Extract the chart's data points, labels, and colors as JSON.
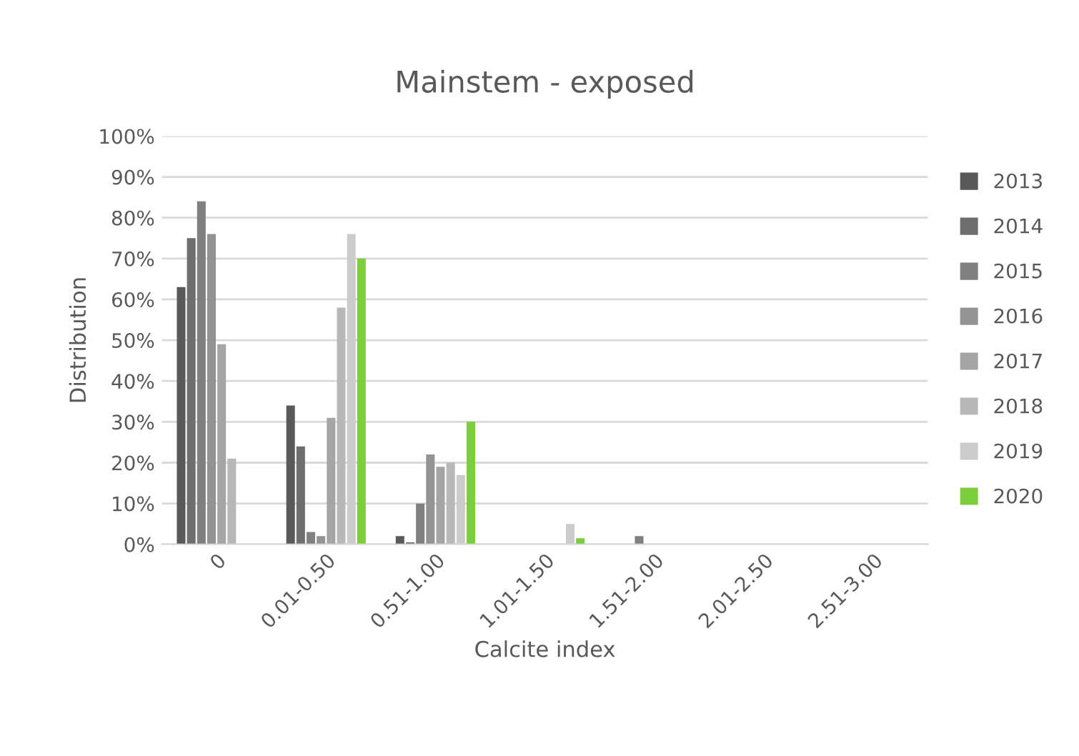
{
  "chart_data": {
    "type": "bar",
    "title": "Mainstem - exposed",
    "xlabel": "Calcite index",
    "ylabel": "Distribution",
    "categories": [
      "0",
      "0.01-0.50",
      "0.51-1.00",
      "1.01-1.50",
      "1.51-2.00",
      "2.01-2.50",
      "2.51-3.00"
    ],
    "series": [
      {
        "name": "2013",
        "color": "#595959",
        "values": [
          63,
          34,
          2,
          null,
          null,
          null,
          null
        ]
      },
      {
        "name": "2014",
        "color": "#6e6e6e",
        "values": [
          75,
          24,
          0.5,
          null,
          null,
          null,
          null
        ]
      },
      {
        "name": "2015",
        "color": "#808080",
        "values": [
          84,
          3,
          10,
          null,
          2,
          null,
          null
        ]
      },
      {
        "name": "2016",
        "color": "#939393",
        "values": [
          76,
          2,
          22,
          null,
          null,
          null,
          null
        ]
      },
      {
        "name": "2017",
        "color": "#a5a5a5",
        "values": [
          49,
          31,
          19,
          null,
          null,
          null,
          null
        ]
      },
      {
        "name": "2018",
        "color": "#b8b8b8",
        "values": [
          21,
          58,
          20,
          null,
          null,
          null,
          null
        ]
      },
      {
        "name": "2019",
        "color": "#cccccc",
        "values": [
          null,
          76,
          17,
          5,
          null,
          null,
          null
        ]
      },
      {
        "name": "2020",
        "color": "#7dce3c",
        "values": [
          null,
          70,
          30,
          1.5,
          null,
          null,
          null
        ]
      }
    ],
    "ylim": [
      0,
      100
    ],
    "yticks": [
      {
        "value": 0,
        "label": "0%"
      },
      {
        "value": 10,
        "label": "10%"
      },
      {
        "value": 20,
        "label": "20%"
      },
      {
        "value": 30,
        "label": "30%"
      },
      {
        "value": 40,
        "label": "40%"
      },
      {
        "value": 50,
        "label": "50%"
      },
      {
        "value": 60,
        "label": "60%"
      },
      {
        "value": 70,
        "label": "70%"
      },
      {
        "value": 80,
        "label": "80%"
      },
      {
        "value": 90,
        "label": "90%"
      },
      {
        "value": 100,
        "label": "100%"
      }
    ],
    "grid": "y",
    "legend": "right"
  }
}
